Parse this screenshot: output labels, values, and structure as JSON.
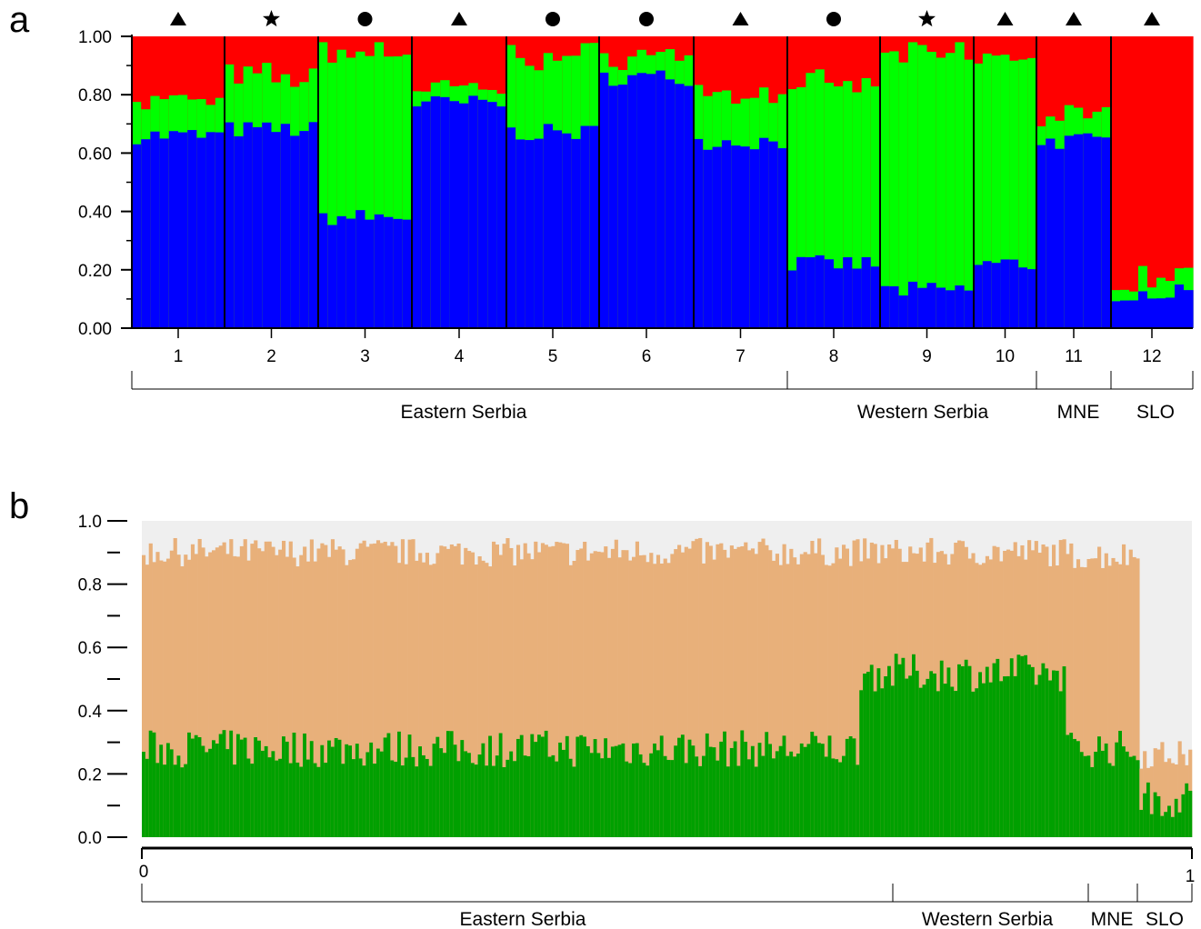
{
  "panels": {
    "a": {
      "label": "a"
    },
    "b": {
      "label": "b"
    }
  },
  "chart_data": [
    {
      "type": "bar",
      "subtype": "stacked-structure",
      "panel": "a",
      "ylim": [
        0,
        1
      ],
      "yticks": [
        "0.00",
        "0.20",
        "0.40",
        "0.60",
        "0.80",
        "1.00"
      ],
      "colors": {
        "blue": "#0000ff",
        "green": "#00ff00",
        "red": "#ff0000"
      },
      "populations": [
        {
          "label": "1",
          "symbol": "triangle",
          "blue": 0.66,
          "green": 0.12,
          "n": 10
        },
        {
          "label": "2",
          "symbol": "star",
          "blue": 0.68,
          "green": 0.18,
          "n": 10
        },
        {
          "label": "3",
          "symbol": "circle",
          "blue": 0.38,
          "green": 0.57,
          "n": 10
        },
        {
          "label": "4",
          "symbol": "triangle",
          "blue": 0.77,
          "green": 0.05,
          "n": 10
        },
        {
          "label": "5",
          "symbol": "circle",
          "blue": 0.67,
          "green": 0.26,
          "n": 10
        },
        {
          "label": "6",
          "symbol": "circle",
          "blue": 0.86,
          "green": 0.08,
          "n": 10
        },
        {
          "label": "7",
          "symbol": "triangle",
          "blue": 0.64,
          "green": 0.16,
          "n": 10
        },
        {
          "label": "8",
          "symbol": "circle",
          "blue": 0.22,
          "green": 0.61,
          "n": 10
        },
        {
          "label": "9",
          "symbol": "star",
          "blue": 0.13,
          "green": 0.81,
          "n": 10
        },
        {
          "label": "10",
          "symbol": "triangle",
          "blue": 0.22,
          "green": 0.71,
          "n": 7
        },
        {
          "label": "11",
          "symbol": "triangle",
          "blue": 0.64,
          "green": 0.08,
          "n": 8
        },
        {
          "label": "12",
          "symbol": "triangle",
          "blue": 0.12,
          "green": 0.06,
          "n": 9
        }
      ],
      "regions": [
        {
          "label": "Eastern Serbia",
          "from": 1,
          "to": 7
        },
        {
          "label": "Western Serbia",
          "from": 8,
          "to": 10
        },
        {
          "label": "MNE",
          "from": 11,
          "to": 11
        },
        {
          "label": "SLO",
          "from": 12,
          "to": 12
        }
      ]
    },
    {
      "type": "bar",
      "subtype": "ancestry-proportions",
      "panel": "b",
      "ylim": [
        0,
        1
      ],
      "yticks": [
        "0.0",
        "0.2",
        "0.4",
        "0.6",
        "0.8",
        "1.0"
      ],
      "x_tick_labels": [
        "0",
        "1"
      ],
      "colors": {
        "green": "#00a000",
        "tan": "#e8b07a",
        "background": "#efefef"
      },
      "individuals": 300,
      "segments": [
        {
          "from": 0.0,
          "to": 0.685,
          "green": 0.28,
          "tan": 0.91
        },
        {
          "from": 0.685,
          "to": 0.88,
          "green": 0.52,
          "tan": 0.91
        },
        {
          "from": 0.88,
          "to": 0.95,
          "green": 0.28,
          "tan": 0.9
        },
        {
          "from": 0.95,
          "to": 1.0,
          "green": 0.12,
          "tan": 0.27
        }
      ],
      "regions": [
        {
          "label": "Eastern Serbia",
          "from": 0.0,
          "to": 0.715
        },
        {
          "label": "Western Serbia",
          "from": 0.715,
          "to": 0.902
        },
        {
          "label": "MNE",
          "from": 0.902,
          "to": 0.951
        },
        {
          "label": "SLO",
          "from": 0.951,
          "to": 1.0
        }
      ]
    }
  ]
}
